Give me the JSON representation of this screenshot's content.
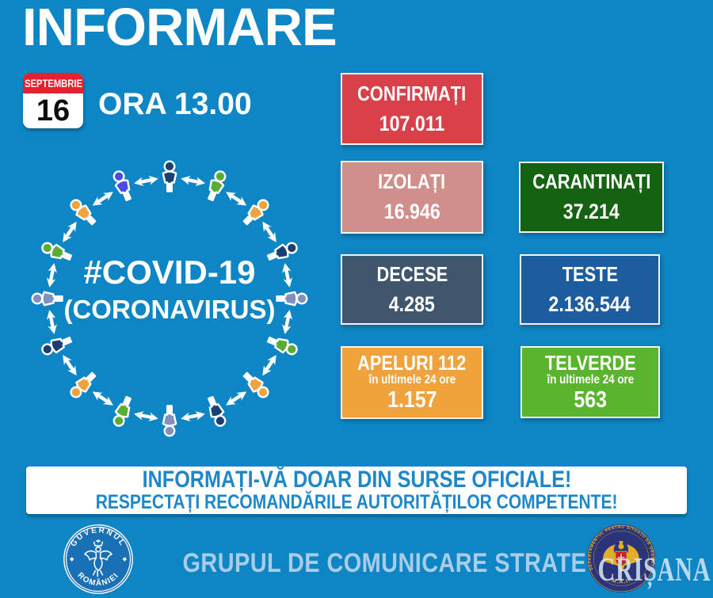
{
  "title": "INFORMARE",
  "date_badge": {
    "month": "SEPTEMBRIE",
    "day": "16"
  },
  "time_label": "ORA 13.00",
  "diagram": {
    "center_line1": "#COVID-19",
    "center_line2": "(CORONAVIRUS)",
    "arrow_color": "#ffffff",
    "person_colors": [
      "#1c3f73",
      "#5aac37",
      "#f0a23c",
      "#1c3f73",
      "#8090c0",
      "#5aac37",
      "#f0a23c",
      "#1c3f73",
      "#8090c0",
      "#5aac37",
      "#f0a23c",
      "#1c3f73",
      "#8090c0",
      "#5aac37",
      "#f0a23c",
      "#4a4ce2"
    ]
  },
  "stats": [
    {
      "id": "confirmati",
      "label": "CONFIRMAȚI",
      "value": "107.011",
      "bg": "#d8404a"
    },
    {
      "id": "izolati",
      "label": "IZOLAȚI",
      "value": "16.946",
      "bg": "#d18f8c"
    },
    {
      "id": "carantinati",
      "label": "CARANTINAȚI",
      "value": "37.214",
      "bg": "#156310"
    },
    {
      "id": "decese",
      "label": "DECESE",
      "value": "4.285",
      "bg": "#3f566c"
    },
    {
      "id": "teste",
      "label": "TESTE",
      "value": "2.136.544",
      "bg": "#1d5c9f"
    },
    {
      "id": "apeluri",
      "label": "APELURI 112",
      "sublabel": "în ultimele 24 ore",
      "value": "1.157",
      "bg": "#f0a33d"
    },
    {
      "id": "telverde",
      "label": "TELVERDE",
      "sublabel": "în ultimele 24 ore",
      "value": "563",
      "bg": "#5bb42e"
    }
  ],
  "notice": {
    "line1": "INFORMAȚI-VĂ DOAR DIN SURSE OFICIALE!",
    "line2": "RESPECTAȚI RECOMANDĂRILE AUTORITĂȚILOR COMPETENTE!"
  },
  "footer": {
    "gov_seal": {
      "top": "GUVERNUL",
      "bottom": "ROMÂNIEI"
    },
    "group_label": "GRUPUL DE COMUNICARE STRATEGICĂ",
    "dsu_seal": {
      "ring": "DEPARTAMENTUL PENTRU SITUAȚII DE URGENȚĂ",
      "bottom": "M.A.I."
    },
    "watermark": "CRIȘANA"
  },
  "colors": {
    "background": "#0e86c5",
    "calendar_header_red": "#e7202e",
    "notice_text_blue": "#1d87c9",
    "footer_label_blue": "#a9cde9",
    "dsu_gold": "#e6bd3c",
    "dsu_navy": "#2b3478",
    "dsu_shield_red": "#c32030",
    "gov_seal_blue": "#1a70b4"
  }
}
